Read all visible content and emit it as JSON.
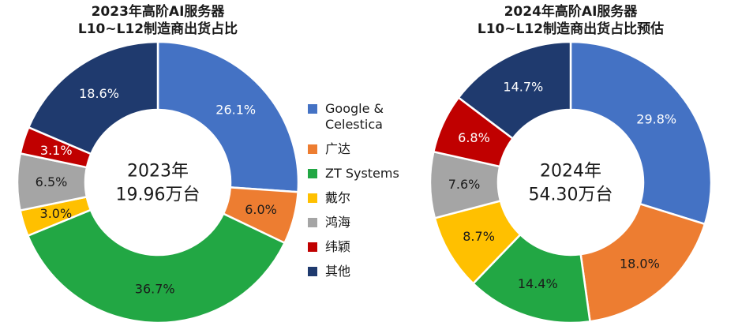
{
  "colors": {
    "google_celestica": "#4472c4",
    "guangda": "#ed7d31",
    "zt_systems": "#22a744",
    "dell": "#ffc000",
    "honhai": "#a5a5a5",
    "wistron": "#c00000",
    "others": "#1f3a6e"
  },
  "legend": [
    {
      "label": "Google &\nCelestica",
      "color": "#4472c4"
    },
    {
      "label": "广达",
      "color": "#ed7d31"
    },
    {
      "label": "ZT Systems",
      "color": "#22a744"
    },
    {
      "label": "戴尔",
      "color": "#ffc000"
    },
    {
      "label": "鸿海",
      "color": "#a5a5a5"
    },
    {
      "label": "纬颖",
      "color": "#c00000"
    },
    {
      "label": "其他",
      "color": "#1f3a6e"
    }
  ],
  "chart_data": [
    {
      "type": "pie",
      "donut": true,
      "title_lines": [
        "2023年高阶AI服务器",
        "L10~L12制造商出货占比"
      ],
      "center_lines": [
        "2023年",
        "19.96万台"
      ],
      "slices": [
        {
          "label": "Google & Celestica",
          "value": 26.1,
          "display": "26.1%",
          "color": "#4472c4",
          "text_color": "#ffffff"
        },
        {
          "label": "广达",
          "value": 6.0,
          "display": "6.0%",
          "color": "#ed7d31",
          "text_color": "#1a1a1a"
        },
        {
          "label": "ZT Systems",
          "value": 36.7,
          "display": "36.7%",
          "color": "#22a744",
          "text_color": "#1a1a1a"
        },
        {
          "label": "戴尔",
          "value": 3.0,
          "display": "3.0%",
          "color": "#ffc000",
          "text_color": "#1a1a1a"
        },
        {
          "label": "鸿海",
          "value": 6.5,
          "display": "6.5%",
          "color": "#a5a5a5",
          "text_color": "#1a1a1a"
        },
        {
          "label": "纬颖",
          "value": 3.1,
          "display": "3.1%",
          "color": "#c00000",
          "text_color": "#ffffff"
        },
        {
          "label": "其他",
          "value": 18.6,
          "display": "18.6%",
          "color": "#1f3a6e",
          "text_color": "#ffffff"
        }
      ]
    },
    {
      "type": "pie",
      "donut": true,
      "title_lines": [
        "2024年高阶AI服务器",
        "L10~L12制造商出货占比预估"
      ],
      "center_lines": [
        "2024年",
        "54.30万台"
      ],
      "slices": [
        {
          "label": "Google & Celestica",
          "value": 29.8,
          "display": "29.8%",
          "color": "#4472c4",
          "text_color": "#ffffff"
        },
        {
          "label": "广达",
          "value": 18.0,
          "display": "18.0%",
          "color": "#ed7d31",
          "text_color": "#1a1a1a"
        },
        {
          "label": "ZT Systems",
          "value": 14.4,
          "display": "14.4%",
          "color": "#22a744",
          "text_color": "#1a1a1a"
        },
        {
          "label": "戴尔",
          "value": 8.7,
          "display": "8.7%",
          "color": "#ffc000",
          "text_color": "#1a1a1a"
        },
        {
          "label": "鸿海",
          "value": 7.6,
          "display": "7.6%",
          "color": "#a5a5a5",
          "text_color": "#1a1a1a"
        },
        {
          "label": "纬颖",
          "value": 6.8,
          "display": "6.8%",
          "color": "#c00000",
          "text_color": "#ffffff"
        },
        {
          "label": "其他",
          "value": 14.7,
          "display": "14.7%",
          "color": "#1f3a6e",
          "text_color": "#ffffff"
        }
      ]
    }
  ]
}
